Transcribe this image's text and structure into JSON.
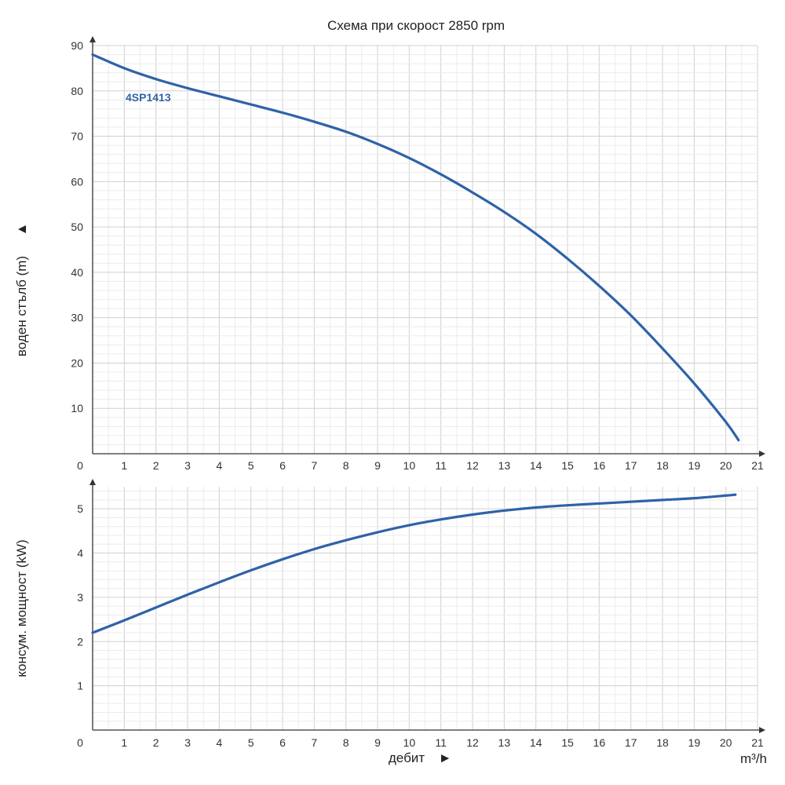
{
  "colors": {
    "curve": "#2f62a8",
    "grid_major": "#d0d0d0",
    "grid_minor": "#ececec",
    "axis": "#333333"
  },
  "chart_data": [
    {
      "type": "line",
      "title": "Схема при скорост 2850 rpm",
      "ylabel": "воден стълб (m)",
      "ylabel_marker": "▲",
      "xlim": [
        0,
        21
      ],
      "ylim": [
        0,
        90
      ],
      "x_ticks": [
        0,
        1,
        2,
        3,
        4,
        5,
        6,
        7,
        8,
        9,
        10,
        11,
        12,
        13,
        14,
        15,
        16,
        17,
        18,
        19,
        20,
        21
      ],
      "y_ticks": [
        10,
        20,
        30,
        40,
        50,
        60,
        70,
        80,
        90
      ],
      "grid": true,
      "series": [
        {
          "name": "4SP1413",
          "x": [
            0,
            1,
            2,
            3,
            4,
            5,
            6,
            7,
            8,
            9,
            10,
            11,
            12,
            13,
            14,
            15,
            16,
            17,
            18,
            19,
            20,
            20.4
          ],
          "y": [
            88,
            85,
            82.6,
            80.6,
            78.8,
            77,
            75.2,
            73.2,
            71,
            68.3,
            65.2,
            61.6,
            57.6,
            53.3,
            48.5,
            43,
            37,
            30.5,
            23.2,
            15.5,
            7,
            3
          ]
        }
      ]
    },
    {
      "type": "line",
      "title": "",
      "xlabel": "дебит",
      "xlabel_marker": "►",
      "unit_label": "m³/h",
      "ylabel": "консум. мощност (kW)",
      "xlim": [
        0,
        21
      ],
      "ylim": [
        0,
        5.5
      ],
      "x_ticks": [
        0,
        1,
        2,
        3,
        4,
        5,
        6,
        7,
        8,
        9,
        10,
        11,
        12,
        13,
        14,
        15,
        16,
        17,
        18,
        19,
        20,
        21
      ],
      "y_ticks": [
        1,
        2,
        3,
        4,
        5
      ],
      "grid": true,
      "series": [
        {
          "x": [
            0,
            1,
            2,
            3,
            4,
            5,
            6,
            7,
            8,
            9,
            10,
            11,
            12,
            13,
            14,
            15,
            16,
            17,
            18,
            19,
            20,
            20.3
          ],
          "y": [
            2.2,
            2.48,
            2.77,
            3.06,
            3.34,
            3.61,
            3.86,
            4.09,
            4.29,
            4.47,
            4.63,
            4.76,
            4.87,
            4.96,
            5.03,
            5.08,
            5.12,
            5.16,
            5.2,
            5.24,
            5.3,
            5.32
          ]
        }
      ]
    }
  ]
}
